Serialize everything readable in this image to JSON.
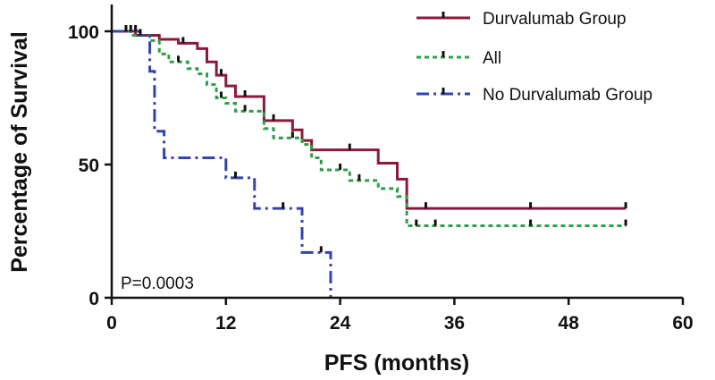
{
  "chart_data": {
    "type": "line",
    "title": "",
    "xlabel": "PFS (months)",
    "ylabel": "Percentage of Survival",
    "xlim": [
      0,
      60
    ],
    "ylim": [
      0,
      105
    ],
    "x_ticks": [
      "0",
      "12",
      "24",
      "36",
      "48",
      "60"
    ],
    "y_ticks": [
      "0",
      "50",
      "100"
    ],
    "grid": false,
    "legend_position": "top-right",
    "annotation": "P=0.0003",
    "series": [
      {
        "name": "Durvalumab Group",
        "color": "#8b1a3a",
        "style": "solid",
        "steps": [
          [
            0,
            100
          ],
          [
            2.5,
            98.5
          ],
          [
            5,
            97
          ],
          [
            7,
            95.5
          ],
          [
            9,
            93.5
          ],
          [
            10,
            88.5
          ],
          [
            11,
            83.5
          ],
          [
            12,
            79.5
          ],
          [
            13,
            75.5
          ],
          [
            16,
            66.5
          ],
          [
            19,
            63
          ],
          [
            20,
            59
          ],
          [
            21,
            55.5
          ],
          [
            28,
            50.5
          ],
          [
            30,
            44.5
          ],
          [
            31,
            33.5
          ],
          [
            54,
            33.5
          ]
        ],
        "censored": [
          [
            2,
            100
          ],
          [
            3,
            98.5
          ],
          [
            7.5,
            95.5
          ],
          [
            11.5,
            83.5
          ],
          [
            14,
            75.5
          ],
          [
            17,
            66.5
          ],
          [
            25,
            55.5
          ],
          [
            33,
            33.5
          ],
          [
            44,
            33.5
          ],
          [
            54,
            33.5
          ]
        ]
      },
      {
        "name": "All",
        "color": "#2e9e4a",
        "style": "dotted",
        "steps": [
          [
            0,
            100
          ],
          [
            2,
            98.5
          ],
          [
            4,
            96.5
          ],
          [
            5,
            91.5
          ],
          [
            6,
            88.5
          ],
          [
            8,
            86
          ],
          [
            9,
            84
          ],
          [
            10,
            80
          ],
          [
            11,
            75
          ],
          [
            12,
            73
          ],
          [
            13,
            70
          ],
          [
            16,
            63.5
          ],
          [
            17,
            60
          ],
          [
            20,
            57.5
          ],
          [
            21,
            52.5
          ],
          [
            22,
            48
          ],
          [
            25,
            44
          ],
          [
            28,
            41
          ],
          [
            30,
            38
          ],
          [
            31,
            27
          ],
          [
            54,
            27
          ]
        ],
        "censored": [
          [
            2.5,
            100
          ],
          [
            3,
            98.5
          ],
          [
            7,
            88.5
          ],
          [
            11.5,
            75
          ],
          [
            14,
            70
          ],
          [
            19,
            60
          ],
          [
            24,
            48
          ],
          [
            26,
            44
          ],
          [
            32,
            27
          ],
          [
            34,
            27
          ],
          [
            44,
            27
          ],
          [
            54,
            27
          ]
        ]
      },
      {
        "name": "No Durvalumab Group",
        "color": "#3344aa",
        "style": "dashdot",
        "steps": [
          [
            0,
            100
          ],
          [
            3,
            98.5
          ],
          [
            4,
            85
          ],
          [
            4.5,
            62.5
          ],
          [
            5.5,
            52.5
          ],
          [
            12,
            45
          ],
          [
            15,
            33.5
          ],
          [
            20,
            17
          ],
          [
            23,
            0
          ]
        ],
        "censored": [
          [
            1.5,
            100
          ],
          [
            13,
            45
          ],
          [
            18,
            33.5
          ],
          [
            22,
            17
          ]
        ]
      }
    ]
  }
}
